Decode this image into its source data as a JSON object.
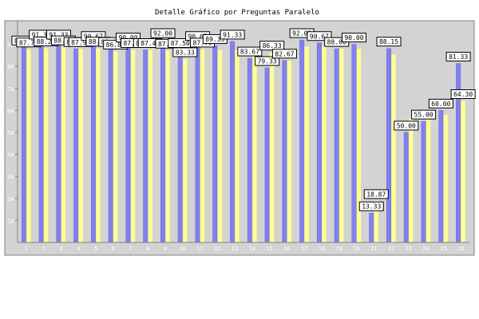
{
  "chart_data": {
    "type": "bar",
    "title": "Detalle Gráfico por Preguntas Paralelo",
    "xlabel": "",
    "ylabel": "",
    "ylim": [
      0,
      100
    ],
    "yticks": [
      10,
      20,
      30,
      40,
      50,
      60,
      70,
      80,
      90
    ],
    "grid": true,
    "legend": "none",
    "categories": [
      "1",
      "2",
      "3",
      "4",
      "5",
      "6",
      "7",
      "8",
      "9",
      "10",
      "11",
      "12",
      "13",
      "14",
      "15",
      "16",
      "17",
      "18",
      "19",
      "20",
      "21",
      "22",
      "23",
      "24",
      "25",
      "26"
    ],
    "series": [
      {
        "color": "#8080f0",
        "values": [
          88.67,
          91.33,
          91.33,
          88.0,
          90.67,
          88.0,
          90.0,
          87.5,
          92.0,
          87.5,
          90.67,
          89.33,
          91.33,
          83.67,
          79.33,
          82.67,
          92.0,
          90.67,
          88.0,
          90.0,
          13.33,
          88.15,
          50.0,
          55.0,
          60.0,
          81.33
        ]
      },
      {
        "color": "#ffff99",
        "values": [
          87.77,
          88.24,
          88.73,
          87.95,
          88.14,
          86.81,
          87.5,
          87.49,
          87.22,
          83.33,
          87.7,
          87.5,
          87.5,
          87.5,
          86.33,
          82.67,
          89.0,
          89.0,
          88.0,
          88.0,
          18.87,
          85.5,
          56.0,
          60.0,
          58.0,
          64.3
        ]
      }
    ],
    "data_labels": [
      {
        "text": "88.67",
        "index": 0,
        "series": 0
      },
      {
        "text": "87.77",
        "index": 0,
        "series": 1
      },
      {
        "text": "91.33",
        "index": 1,
        "series": 0
      },
      {
        "text": "88.24",
        "index": 1,
        "series": 1
      },
      {
        "text": "91.33",
        "index": 2,
        "series": 0
      },
      {
        "text": "88.73",
        "index": 2,
        "series": 1
      },
      {
        "text": "88.00",
        "index": 3,
        "series": 0
      },
      {
        "text": "87.95",
        "index": 3,
        "series": 1
      },
      {
        "text": "90.67",
        "index": 4,
        "series": 0
      },
      {
        "text": "88.14",
        "index": 4,
        "series": 1
      },
      {
        "text": "88.00",
        "index": 5,
        "series": 0
      },
      {
        "text": "86.81",
        "index": 5,
        "series": 1
      },
      {
        "text": "90.00",
        "index": 6,
        "series": 0
      },
      {
        "text": "87.50",
        "index": 6,
        "series": 1
      },
      {
        "text": "87.50",
        "index": 7,
        "series": 0
      },
      {
        "text": "87.49",
        "index": 7,
        "series": 1
      },
      {
        "text": "92.00",
        "index": 8,
        "series": 0
      },
      {
        "text": "87.22",
        "index": 8,
        "series": 1
      },
      {
        "text": "87.50",
        "index": 9,
        "series": 0
      },
      {
        "text": "83.33",
        "index": 9,
        "series": 1
      },
      {
        "text": "90.67",
        "index": 10,
        "series": 0
      },
      {
        "text": "87.70",
        "index": 10,
        "series": 1
      },
      {
        "text": "89.33",
        "index": 11,
        "series": 0
      },
      {
        "text": "91.33",
        "index": 12,
        "series": 0
      },
      {
        "text": "83.67",
        "index": 13,
        "series": 0
      },
      {
        "text": "79.33",
        "index": 14,
        "series": 0
      },
      {
        "text": "86.33",
        "index": 14,
        "series": 1
      },
      {
        "text": "82.67",
        "index": 15,
        "series": 0
      },
      {
        "text": "92.00",
        "index": 16,
        "series": 0
      },
      {
        "text": "90.67",
        "index": 17,
        "series": 0
      },
      {
        "text": "88.00",
        "index": 18,
        "series": 0
      },
      {
        "text": "90.00",
        "index": 19,
        "series": 0
      },
      {
        "text": "13.33",
        "index": 20,
        "series": 0
      },
      {
        "text": "18.87",
        "index": 20,
        "series": 1
      },
      {
        "text": "88.15",
        "index": 21,
        "series": 0
      },
      {
        "text": "50.00",
        "index": 22,
        "series": 0
      },
      {
        "text": "55.00",
        "index": 23,
        "series": 0
      },
      {
        "text": "60.00",
        "index": 24,
        "series": 0
      },
      {
        "text": "81.33",
        "index": 25,
        "series": 0
      },
      {
        "text": "64.30",
        "index": 25,
        "series": 1
      }
    ]
  }
}
